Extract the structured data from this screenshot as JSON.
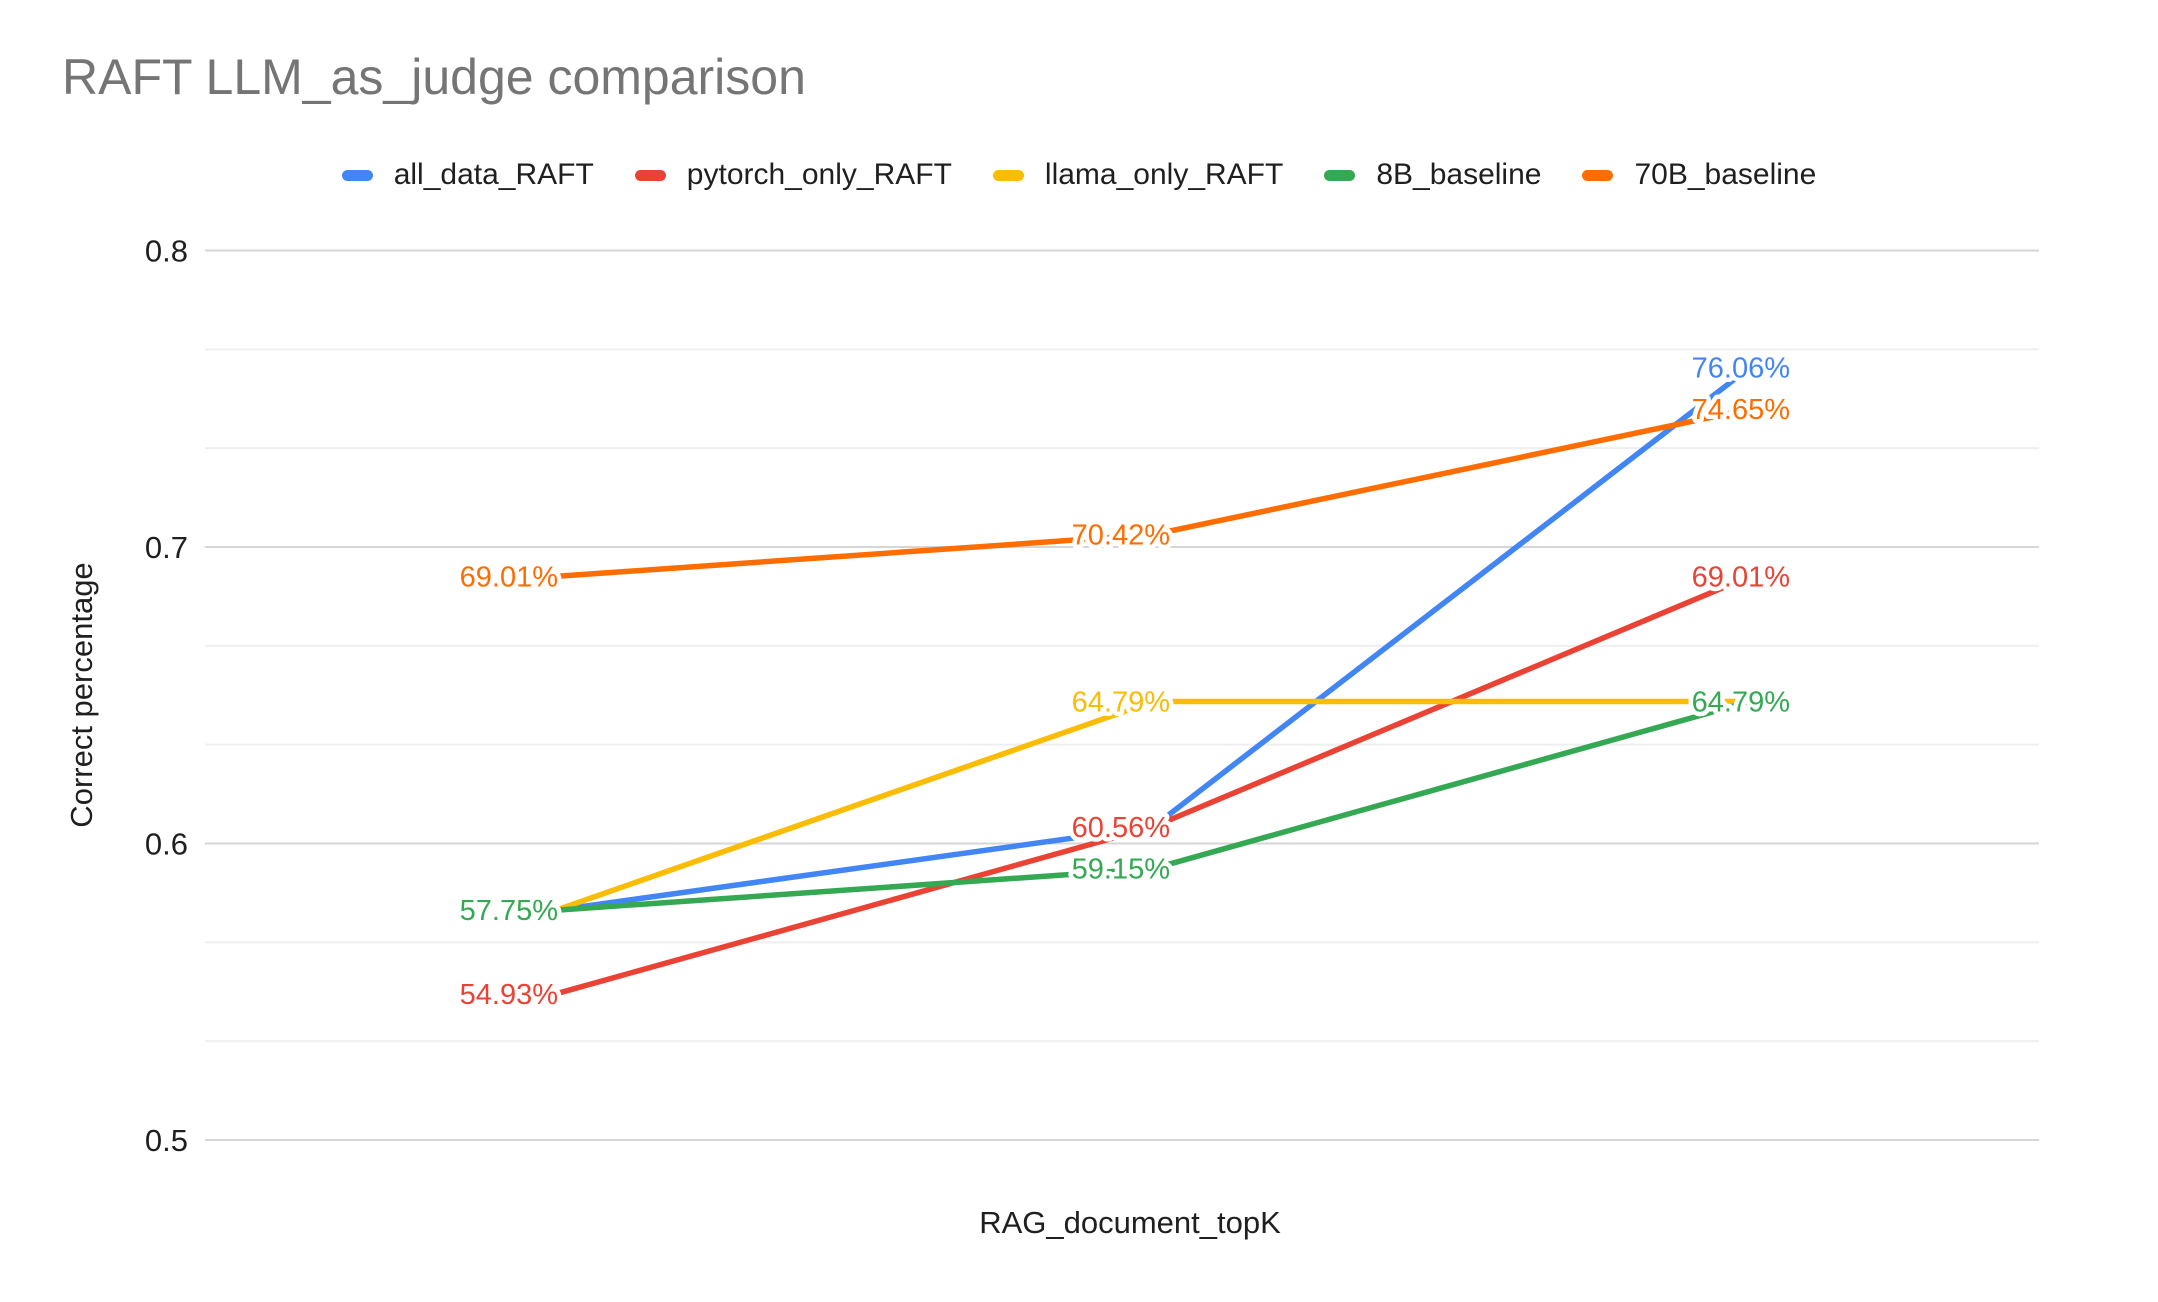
{
  "title": "RAFT LLM_as_judge comparison",
  "axes": {
    "y_title": "Correct percentage",
    "x_title": "RAG_document_topK"
  },
  "chart_data": {
    "type": "line",
    "title": "RAFT LLM_as_judge comparison",
    "xlabel": "RAG_document_topK",
    "ylabel": "Correct percentage",
    "ylim": [
      0.5,
      0.8
    ],
    "y_ticks": [
      {
        "label": "0.8",
        "value": 80
      },
      {
        "label": "0.7",
        "value": 70
      },
      {
        "label": "0.6",
        "value": 60
      },
      {
        "label": "0.5",
        "value": 50
      }
    ],
    "minor_gridline_values": [
      76.667,
      73.333,
      66.667,
      63.333,
      56.667,
      53.333
    ],
    "grid": true,
    "legend_position": "top",
    "x_tick_labels_shown": false,
    "x_categories": [
      "",
      "",
      ""
    ],
    "series": [
      {
        "name": "all_data_RAFT",
        "color": "#4285F4",
        "values": [
          57.75,
          60.56,
          76.06
        ],
        "labels": [
          "57.75%",
          "60.56%",
          "76.06%"
        ]
      },
      {
        "name": "pytorch_only_RAFT",
        "color": "#EA4335",
        "values": [
          54.93,
          60.56,
          69.01
        ],
        "labels": [
          "54.93%",
          "60.56%",
          "69.01%"
        ]
      },
      {
        "name": "llama_only_RAFT",
        "color": "#FBBC04",
        "values": [
          57.75,
          64.79,
          64.79
        ],
        "labels": [
          "57.75%",
          "64.79%",
          "64.79%"
        ]
      },
      {
        "name": "8B_baseline",
        "color": "#34A853",
        "values": [
          57.75,
          59.15,
          64.79
        ],
        "labels": [
          "57.75%",
          "59.15%",
          "64.79%"
        ]
      },
      {
        "name": "70B_baseline",
        "color": "#FF6D01",
        "values": [
          69.01,
          70.42,
          74.65
        ],
        "labels": [
          "69.01%",
          "70.42%",
          "74.65%"
        ]
      }
    ],
    "colors": {
      "major_gridline": "#D6D6D6",
      "minor_gridline": "#EFEFEF",
      "title_text": "#757575",
      "axis_text": "#1f1f1f"
    }
  }
}
